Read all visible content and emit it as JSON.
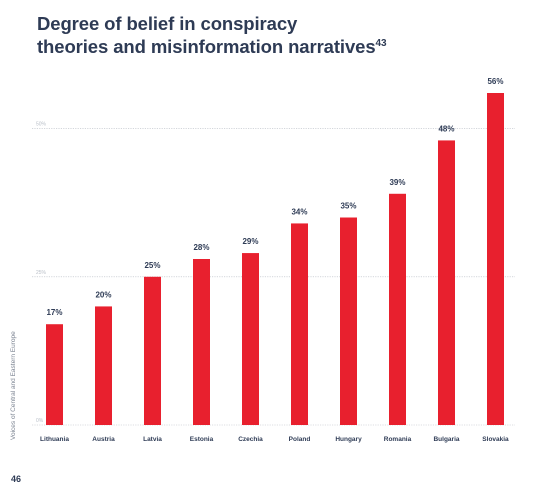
{
  "header": {
    "title_line1": "Degree of belief in conspiracy",
    "title_line2": "theories and misinformation narratives",
    "footnote_ref": "43"
  },
  "side_note": "Voices of Central and Eastern Europe",
  "page_number": "46",
  "colors": {
    "bar": "#e8202e",
    "text": "#2e3b55",
    "grid": "#b9bec6"
  },
  "chart_data": {
    "type": "bar",
    "title": "Degree of belief in conspiracy theories and misinformation narratives",
    "categories": [
      "Lithuania",
      "Austria",
      "Latvia",
      "Estonia",
      "Czechia",
      "Poland",
      "Hungary",
      "Romania",
      "Bulgaria",
      "Slovakia"
    ],
    "values": [
      17,
      20,
      25,
      28,
      29,
      34,
      35,
      39,
      48,
      56
    ],
    "value_labels": [
      "17%",
      "20%",
      "25%",
      "28%",
      "29%",
      "34%",
      "35%",
      "39%",
      "48%",
      "56%"
    ],
    "gridlines": [
      0,
      25,
      50
    ],
    "tick_labels": [
      "0%",
      "25%",
      "50%"
    ],
    "ylim": [
      0,
      56
    ],
    "xlabel": "",
    "ylabel": "",
    "grid": true,
    "legend": "none"
  }
}
